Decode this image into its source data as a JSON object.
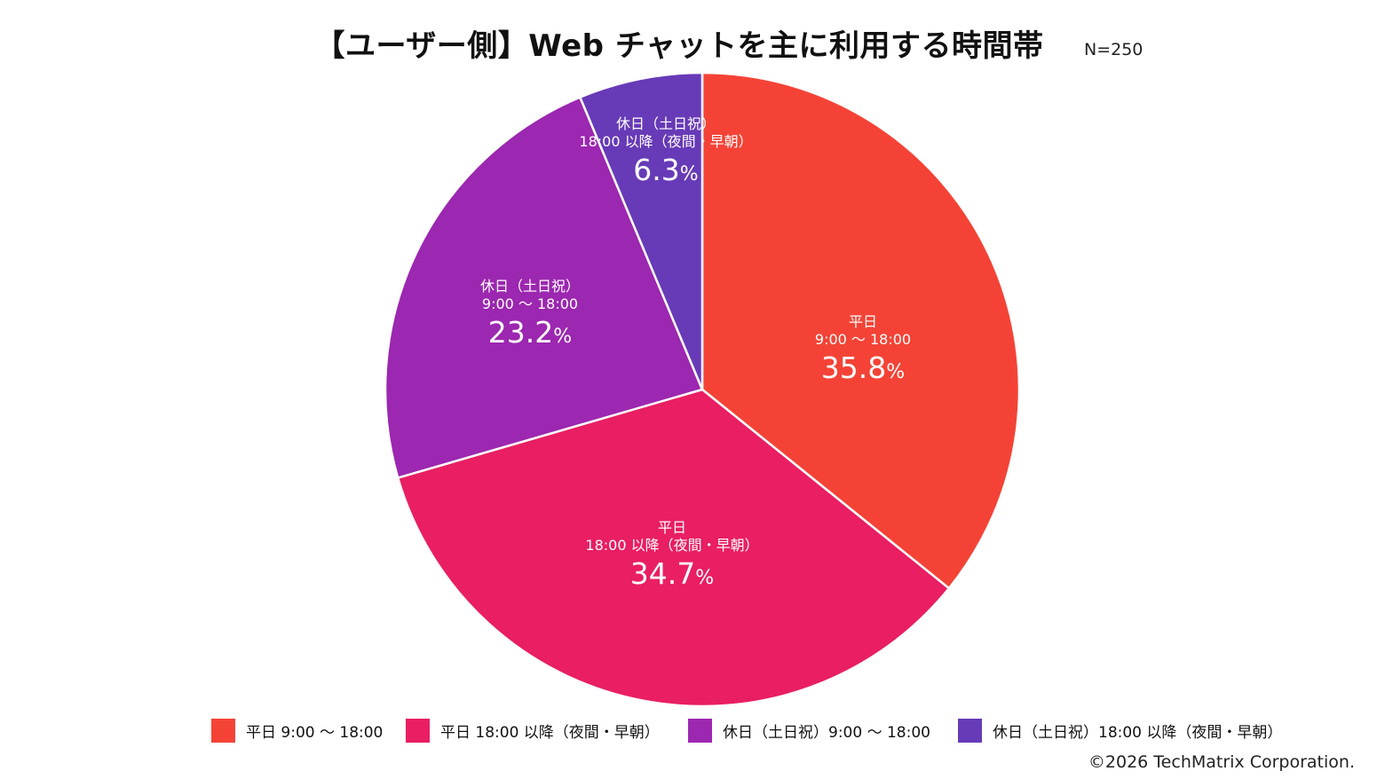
{
  "header": {
    "title": "【ユーザー側】Web チャットを主に利用する時間帯",
    "sample_size": "N=250"
  },
  "chart_data": {
    "type": "pie",
    "title": "【ユーザー側】Web チャットを主に利用する時間帯",
    "start_angle_deg": 0,
    "direction": "clockwise",
    "slices": [
      {
        "label_lines": [
          "平日",
          "9:00 ～ 18:00"
        ],
        "legend_label": "平日 9:00 ～ 18:00",
        "value": 35.8,
        "value_text": "35.8",
        "unit": "%",
        "color": "#F44336"
      },
      {
        "label_lines": [
          "平日",
          "18:00 以降（夜間・早朝）"
        ],
        "legend_label": "平日 18:00 以降（夜間・早朝）",
        "value": 34.7,
        "value_text": "34.7",
        "unit": "%",
        "color": "#E91E63"
      },
      {
        "label_lines": [
          "休日（土日祝）",
          "9:00 ～ 18:00"
        ],
        "legend_label": "休日（土日祝）9:00 ～ 18:00",
        "value": 23.2,
        "value_text": "23.2",
        "unit": "%",
        "color": "#9C27B0"
      },
      {
        "label_lines": [
          "休日（土日祝）",
          "18:00 以降（夜間・早朝）"
        ],
        "legend_label": "休日（土日祝）18:00 以降（夜間・早朝）",
        "value": 6.3,
        "value_text": "6.3",
        "unit": "%",
        "color": "#673AB7"
      }
    ],
    "legend_position": "bottom"
  },
  "footer": {
    "copyright": "©2026 TechMatrix Corporation."
  }
}
